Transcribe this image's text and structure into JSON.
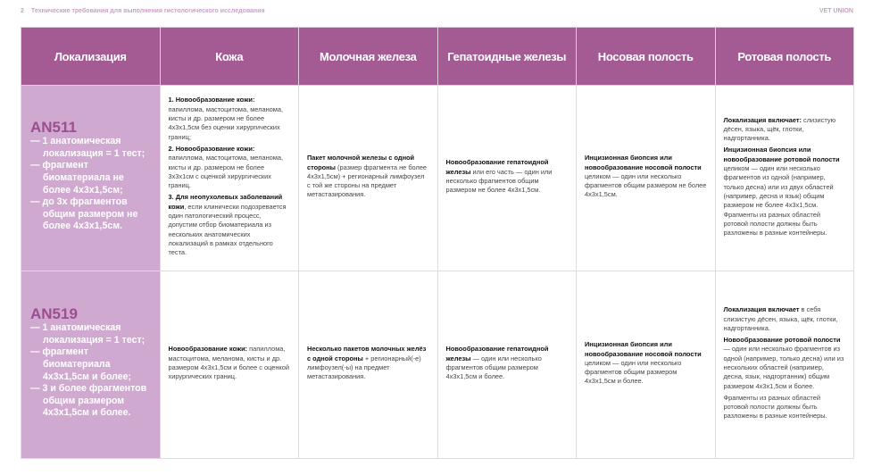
{
  "page_header": {
    "number": "2",
    "title": "Технические требования для выполнения гистологического исследования",
    "brand": "VET UNION"
  },
  "columns": [
    "Локализация",
    "Кожа",
    "Молочная железа",
    "Гепатоидные железы",
    "Носовая полость",
    "Ротовая полость"
  ],
  "colors": {
    "header": "#a45a93",
    "location_cell": "#cfa9cf",
    "code_text": "#9c4f8e"
  },
  "rows": [
    {
      "code": "AN511",
      "conditions": [
        "— 1 анатомическая локализация = 1 тест;",
        "— фрагмент биоматериала не более 4х3х1,5см;",
        "— до 3х фрагментов общим размером не более 4х3х1,5см."
      ],
      "cells": [
        [
          {
            "b": "1. Новообразование кожи:",
            "t": " папиллома, мастоцитома, меланома, кисты и др. размером не более 4х3х1,5см без оценки хирургических границ;"
          },
          {
            "b": "2. Новообразование кожи:",
            "t": " папиллома, мастоцитома, меланома, кисты и др. размером не более 3х3х1см с оценкой хирургических границ."
          },
          {
            "b": "3. Для неопухолевых заболеваний кожи",
            "t": ", если клинически подозревается один патологический процесс, допустим отбор биоматериала из нескольких анатомических локализаций в рамках отдельного теста."
          }
        ],
        [
          {
            "b": "Пакет молочной железы с одной стороны",
            "t": " (размер фрагмента не более 4х3х1,5см) + регионарный лимфоузел с той же стороны на предмет метастазирования."
          }
        ],
        [
          {
            "b": "Новообразование гепатоидной железы",
            "t": " или его часть — один или несколько фрагментов общим размером не более 4х3х1,5см."
          }
        ],
        [
          {
            "b": "Инцизионная биопсия или новообразование носовой полости",
            "t": " целиком — один или несколько фрагментов общим размером не более 4х3х1,5см."
          }
        ],
        [
          {
            "b": "Локализация включает:",
            "t": " слизистую дёсен, языка, щёк, глотки, надгортанника."
          },
          {
            "b": "Инцизионная биопсия или новообразование ротовой полости",
            "t": " целиком — один или несколько фрагментов из одной (например, только десна) или из двух областей (например, десна и язык) общим размером не более 4х3х1,5см. Фрагменты из разных областей ротовой полости должны быть разложены в разные контейнеры."
          }
        ]
      ]
    },
    {
      "code": "AN519",
      "conditions": [
        "— 1 анатомическая локализация = 1 тест;",
        "— фрагмент биоматериала 4х3х1,5см и более;",
        "— 3 и более фрагментов общим размером 4х3х1,5см и более."
      ],
      "cells": [
        [
          {
            "b": "Новообразование кожи:",
            "t": " папиллома, мастоцитома, меланома, кисты и др. размером 4х3х1,5см и более с оценкой хирургических границ."
          }
        ],
        [
          {
            "b": "Несколько пакетов молочных желёз с одной стороны",
            "t": " + регионарный(-е) лимфоузел(-ы) на предмет метастазирования."
          }
        ],
        [
          {
            "b": "Новообразование гепатоидной железы",
            "t": " — один или несколько фрагментов общим размером 4х3х1,5см и более."
          }
        ],
        [
          {
            "b": "Инцизионная биопсия или новообразование носовой полости",
            "t": " целиком — один или несколько фрагментов общим размером 4х3х1,5см и более."
          }
        ],
        [
          {
            "b": "Локализация включает",
            "t": " в себя слизистую дёсен, языка, щёк, глотки, надгортанника."
          },
          {
            "b": "Новообразование ротовой полости",
            "t": " —  один или несколько фрагментов из одной (например, только десна) или из нескольких областей (например, десна, язык, надгортанник) общим размером 4х3х1,5см и более."
          },
          {
            "b": "",
            "t": "Фрагменты из разных областей ротовой полости должны быть разложены в разные контейнеры."
          }
        ]
      ]
    }
  ]
}
